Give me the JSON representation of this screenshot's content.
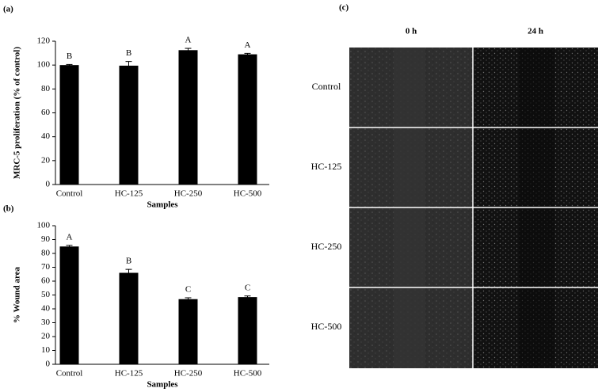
{
  "chart_data": [
    {
      "type": "bar",
      "panel_label": "(a)",
      "y_label": "MRC-5 proliferation (% of control)",
      "x_label": "Samples",
      "categories": [
        "Control",
        "HC-125",
        "HC-250",
        "HC-500"
      ],
      "values": [
        100,
        99.5,
        112.5,
        109
      ],
      "errors": [
        0.5,
        3.5,
        1.5,
        0.8
      ],
      "annotations": [
        "B",
        "B",
        "A",
        "A"
      ],
      "color": "#000000",
      "ylim": [
        0,
        120
      ],
      "yticks": [
        0,
        20,
        40,
        60,
        80,
        100,
        120
      ]
    },
    {
      "type": "bar",
      "panel_label": "(b)",
      "y_label": "% Wound area",
      "x_label": "Samples",
      "categories": [
        "Control",
        "HC-125",
        "HC-250",
        "HC-500"
      ],
      "values": [
        85,
        66,
        47,
        48.5
      ],
      "errors": [
        0.8,
        2.5,
        1,
        0.8
      ],
      "annotations": [
        "A",
        "B",
        "C",
        "C"
      ],
      "color": "#000000",
      "ylim": [
        0,
        100
      ],
      "yticks": [
        0,
        10,
        20,
        30,
        40,
        50,
        60,
        70,
        80,
        90,
        100
      ]
    }
  ],
  "image_panel": {
    "panel_label": "(c)",
    "columns": [
      "0 h",
      "24 h"
    ],
    "rows": [
      "Control",
      "HC-125",
      "HC-250",
      "HC-500"
    ]
  }
}
